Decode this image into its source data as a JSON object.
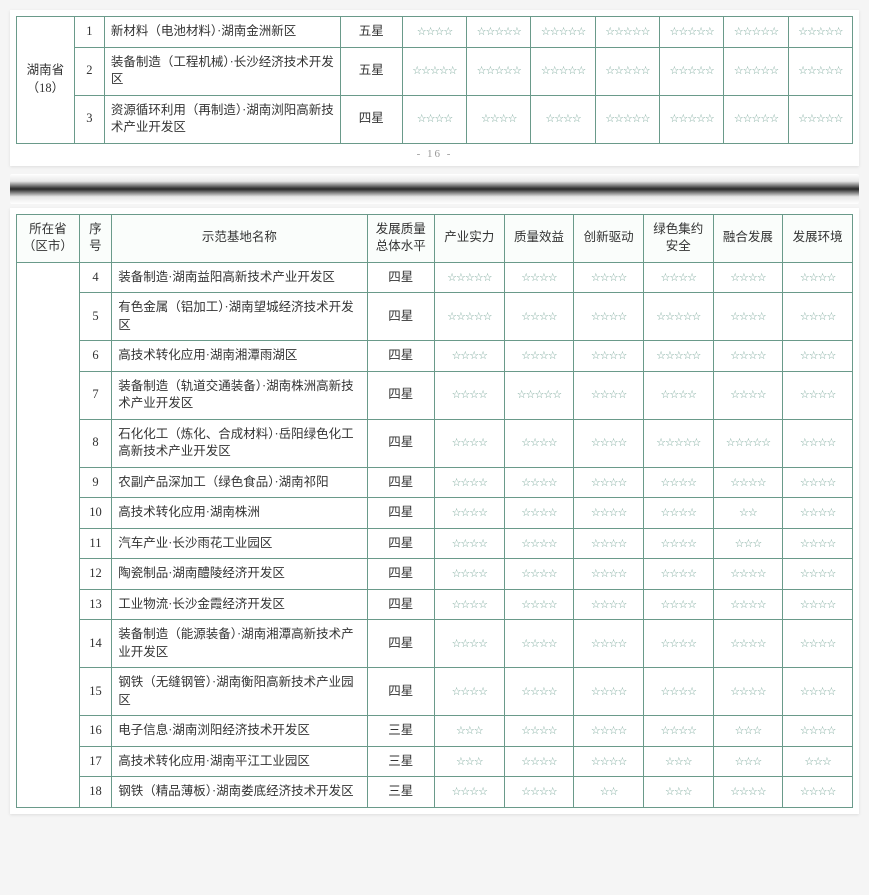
{
  "page_number": "- 16 -",
  "headers": {
    "province": "所在省\n（区市）",
    "index": "序号",
    "name": "示范基地名称",
    "level": "发展质量总体水平",
    "c1": "产业实力",
    "c2": "质量效益",
    "c3": "创新驱动",
    "c4": "绿色集约安全",
    "c5": "融合发展",
    "c6": "发展环境"
  },
  "top": {
    "province": "湖南省（18）",
    "rows": [
      {
        "idx": "1",
        "name": "新材料（电池材料）·湖南金洲新区",
        "level": "五星",
        "s": [
          4,
          5,
          5,
          5,
          5,
          5,
          5
        ]
      },
      {
        "idx": "2",
        "name": "装备制造（工程机械）·长沙经济技术开发区",
        "level": "五星",
        "s": [
          5,
          5,
          5,
          5,
          5,
          5,
          5
        ]
      },
      {
        "idx": "3",
        "name": "资源循环利用（再制造）·湖南浏阳高新技术产业开发区",
        "level": "四星",
        "s": [
          4,
          4,
          4,
          5,
          5,
          5,
          5
        ]
      }
    ]
  },
  "bottom": {
    "rows": [
      {
        "idx": "4",
        "name": "装备制造·湖南益阳高新技术产业开发区",
        "level": "四星",
        "s": [
          5,
          4,
          4,
          4,
          4,
          4
        ]
      },
      {
        "idx": "5",
        "name": "有色金属（铝加工）·湖南望城经济技术开发区",
        "level": "四星",
        "s": [
          5,
          4,
          4,
          5,
          4,
          4
        ]
      },
      {
        "idx": "6",
        "name": "高技术转化应用·湖南湘潭雨湖区",
        "level": "四星",
        "s": [
          4,
          4,
          4,
          5,
          4,
          4
        ]
      },
      {
        "idx": "7",
        "name": "装备制造（轨道交通装备）·湖南株洲高新技术产业开发区",
        "level": "四星",
        "s": [
          4,
          5,
          4,
          4,
          4,
          4
        ]
      },
      {
        "idx": "8",
        "name": "石化化工（炼化、合成材料）·岳阳绿色化工高新技术产业开发区",
        "level": "四星",
        "s": [
          4,
          4,
          4,
          5,
          5,
          4
        ]
      },
      {
        "idx": "9",
        "name": "农副产品深加工（绿色食品）·湖南祁阳",
        "level": "四星",
        "s": [
          4,
          4,
          4,
          4,
          4,
          4
        ]
      },
      {
        "idx": "10",
        "name": "高技术转化应用·湖南株洲",
        "level": "四星",
        "s": [
          4,
          4,
          4,
          4,
          2,
          4
        ]
      },
      {
        "idx": "11",
        "name": "汽车产业·长沙雨花工业园区",
        "level": "四星",
        "s": [
          4,
          4,
          4,
          4,
          3,
          4
        ]
      },
      {
        "idx": "12",
        "name": "陶瓷制品·湖南醴陵经济开发区",
        "level": "四星",
        "s": [
          4,
          4,
          4,
          4,
          4,
          4
        ]
      },
      {
        "idx": "13",
        "name": "工业物流·长沙金霞经济开发区",
        "level": "四星",
        "s": [
          4,
          4,
          4,
          4,
          4,
          4
        ]
      },
      {
        "idx": "14",
        "name": "装备制造（能源装备）·湖南湘潭高新技术产业开发区",
        "level": "四星",
        "s": [
          4,
          4,
          4,
          4,
          4,
          4
        ]
      },
      {
        "idx": "15",
        "name": "钢铁（无缝钢管）·湖南衡阳高新技术产业园区",
        "level": "四星",
        "s": [
          4,
          4,
          4,
          4,
          4,
          4
        ]
      },
      {
        "idx": "16",
        "name": "电子信息·湖南浏阳经济技术开发区",
        "level": "三星",
        "s": [
          3,
          4,
          4,
          4,
          3,
          4
        ]
      },
      {
        "idx": "17",
        "name": "高技术转化应用·湖南平江工业园区",
        "level": "三星",
        "s": [
          3,
          4,
          4,
          3,
          3,
          3
        ]
      },
      {
        "idx": "18",
        "name": "钢铁（精品薄板）·湖南娄底经济技术开发区",
        "level": "三星",
        "s": [
          4,
          4,
          2,
          3,
          4,
          4
        ]
      }
    ]
  }
}
